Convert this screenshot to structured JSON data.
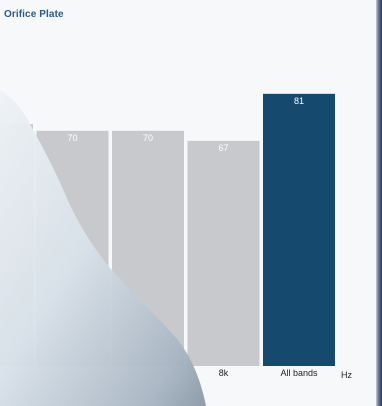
{
  "header": {
    "title": "Orifice Plate"
  },
  "colors": {
    "bar_default": "#c7c9cc",
    "bar_highlight": "#16496e",
    "title": "#2c5a86",
    "background": "#f7f8fa"
  },
  "chart_data": {
    "type": "bar",
    "title": "Orifice Plate",
    "xlabel": "Hz",
    "ylabel": "",
    "categories": [
      "",
      "",
      "",
      "8k",
      "All bands"
    ],
    "values": [
      null,
      70,
      70,
      67,
      81
    ],
    "highlight_category": "All bands",
    "grid": false
  }
}
